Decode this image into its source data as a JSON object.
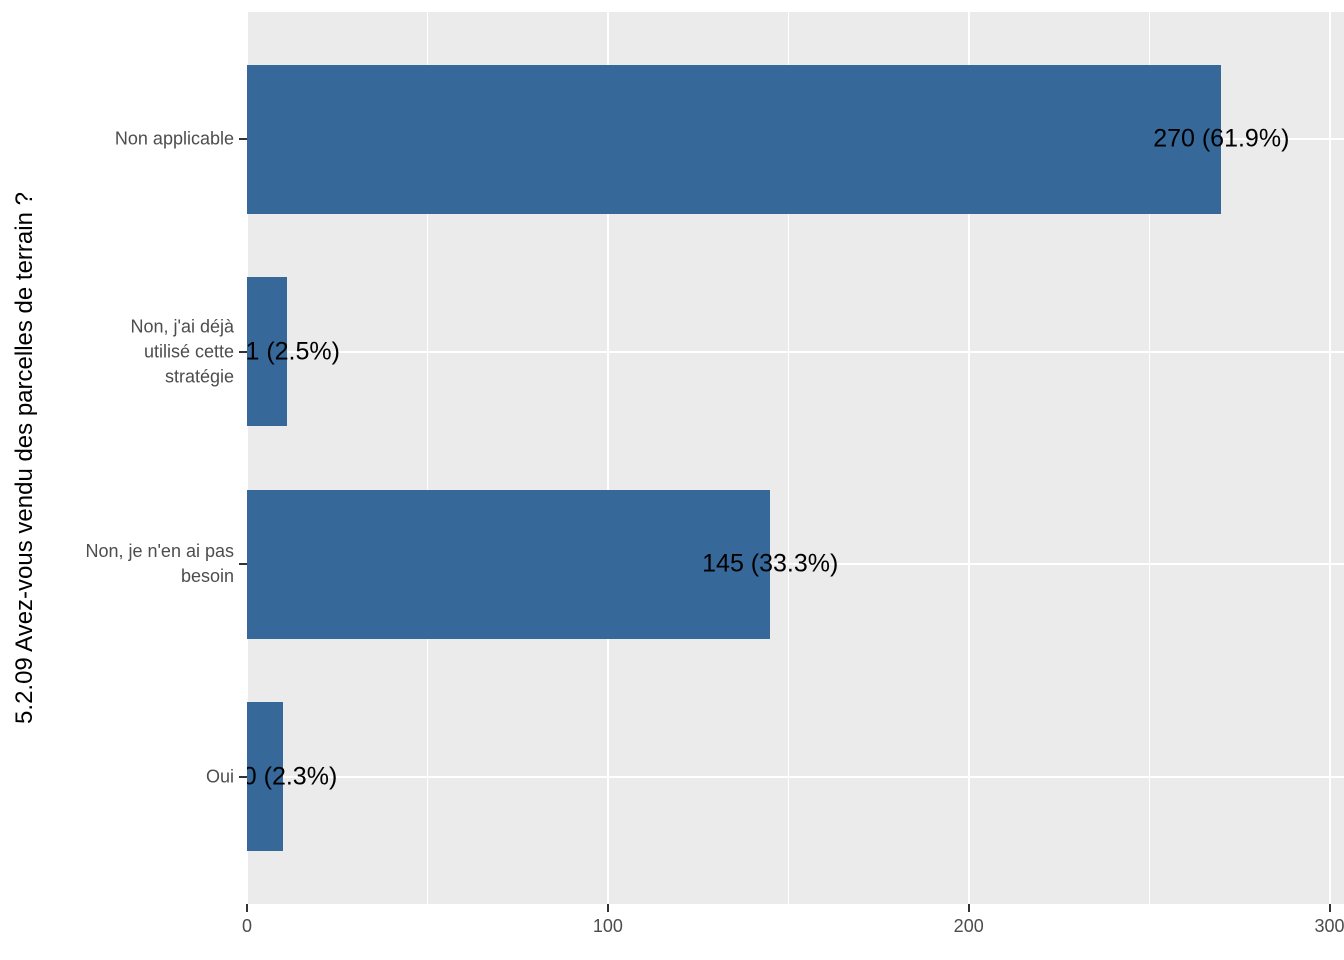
{
  "figure": {
    "background": "#FFFFFF"
  },
  "chart_data": {
    "type": "bar",
    "orientation": "horizontal",
    "title": "",
    "xlabel": "",
    "ylabel": "5.2.09 Avez-vous vendu des parcelles de terrain ?",
    "categories": [
      "Non applicable",
      "Non, j'ai déjà utilisé cette stratégie",
      "Non, je n'en ai pas besoin",
      "Oui"
    ],
    "category_label_lines": [
      [
        "Non applicable"
      ],
      [
        "Non, j'ai déjà",
        "utilisé cette",
        "stratégie"
      ],
      [
        "Non, je n'en ai pas",
        "besoin"
      ],
      [
        "Oui"
      ]
    ],
    "values": [
      270,
      11,
      145,
      10
    ],
    "percentages": [
      61.9,
      2.5,
      33.3,
      2.3
    ],
    "bar_labels": [
      "270 (61.9%)",
      "11 (2.5%)",
      "145 (33.3%)",
      "10 (2.3%)"
    ],
    "x_ticks": [
      0,
      100,
      200,
      300
    ],
    "x_minor_gridlines": [
      50,
      150,
      250
    ],
    "xlim": [
      0,
      304
    ],
    "grid": "white major and minor gridlines on grey panel",
    "legend_position": "none",
    "colors": {
      "bar": "#36689A",
      "panel": "#EBEBEB",
      "gridline": "#FFFFFF",
      "tick_text": "#4D4D4D",
      "axis_title": "#000000",
      "bar_label_text": "#000000",
      "tick_mark": "#333333",
      "background": "#FFFFFF"
    }
  }
}
